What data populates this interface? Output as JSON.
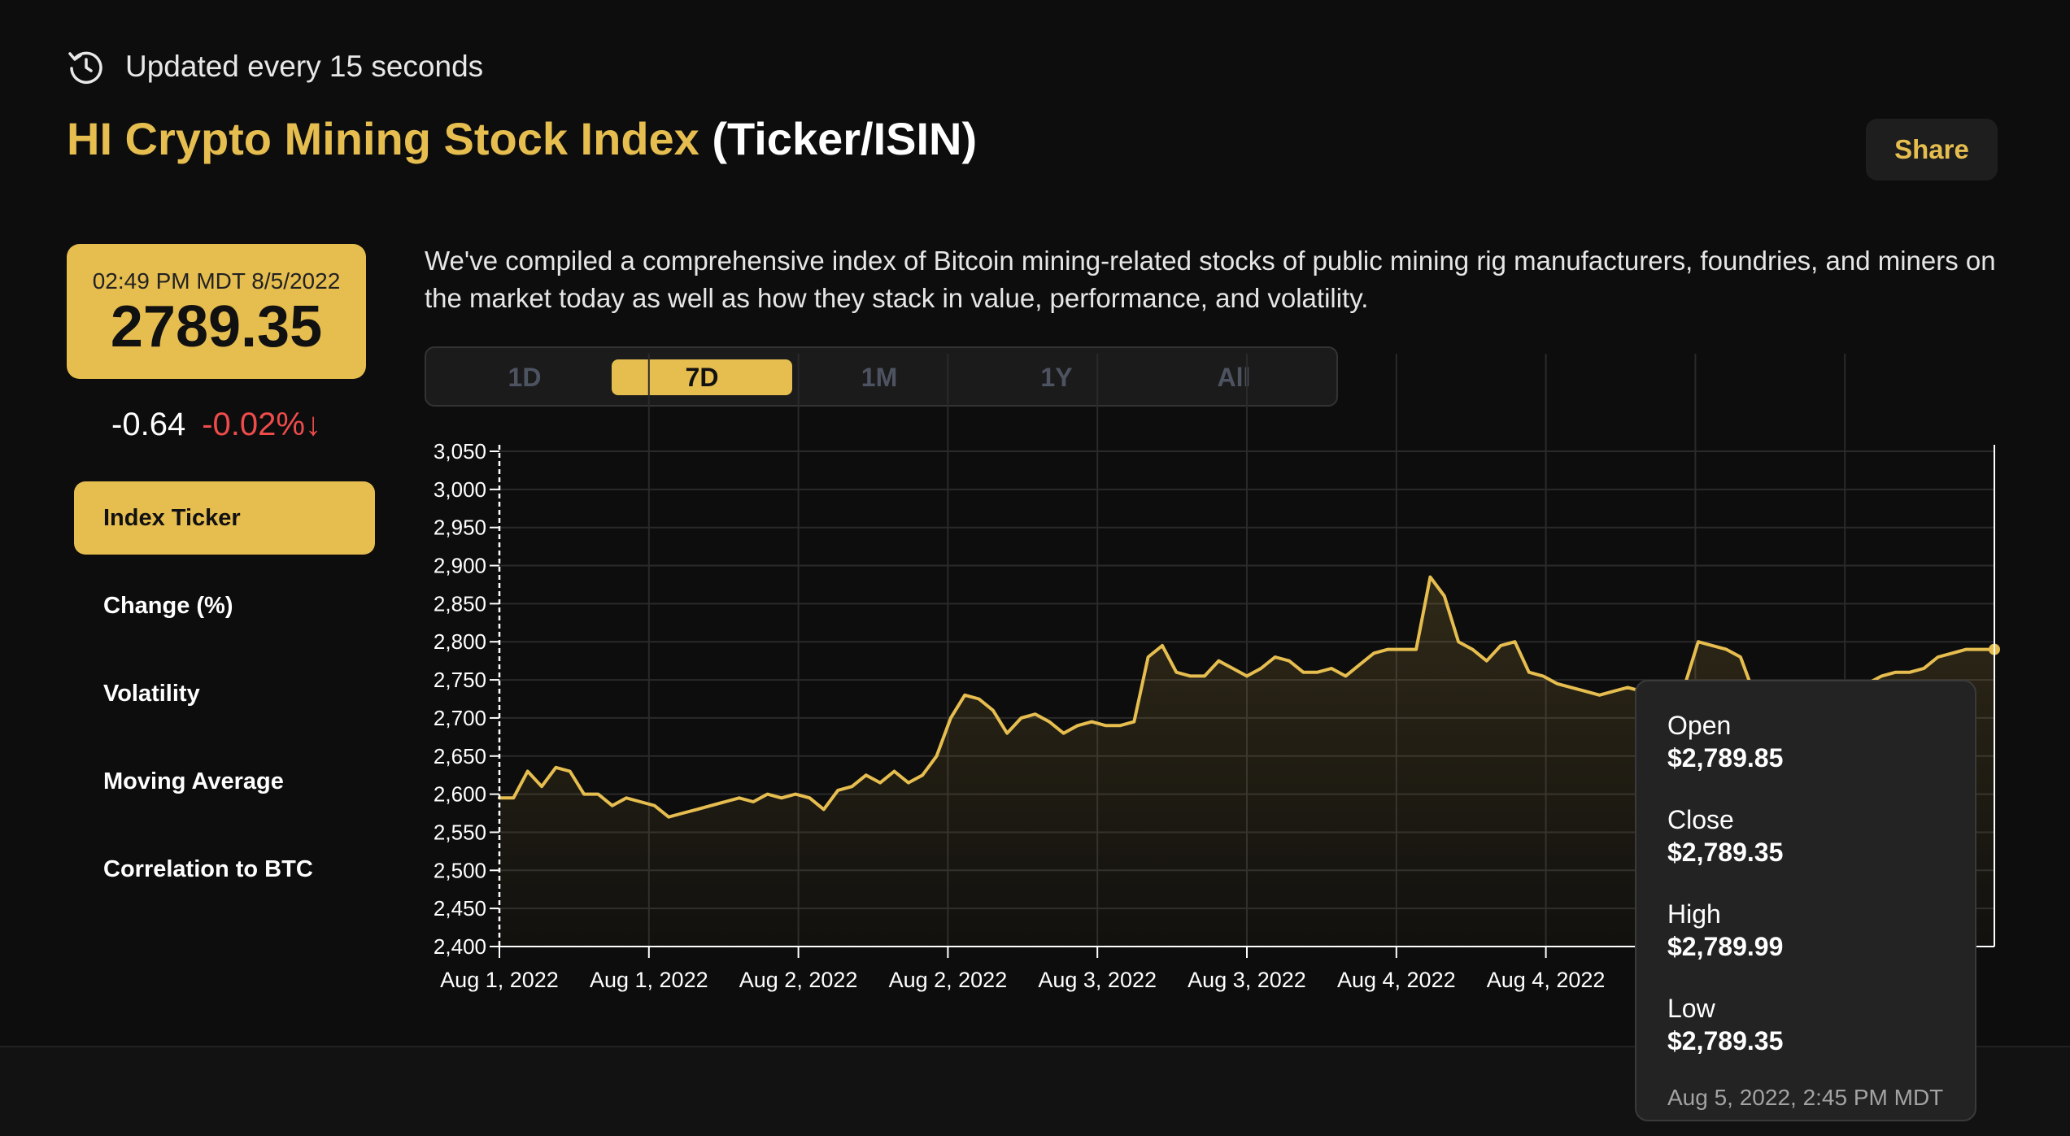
{
  "header": {
    "updated_text": "Updated every 15 seconds",
    "title_accent": "HI Crypto Mining Stock Index",
    "title_rest": "(Ticker/ISIN)",
    "share_label": "Share"
  },
  "price_card": {
    "timestamp": "02:49 PM MDT 8/5/2022",
    "price": "2789.35"
  },
  "change": {
    "absolute": "-0.64",
    "percent": "-0.02%↓"
  },
  "nav": {
    "items": [
      {
        "label": "Index Ticker",
        "active": true
      },
      {
        "label": "Change (%)",
        "active": false
      },
      {
        "label": "Volatility",
        "active": false
      },
      {
        "label": "Moving Average",
        "active": false
      },
      {
        "label": "Correlation to BTC",
        "active": false
      }
    ]
  },
  "description": "We've compiled a comprehensive index of Bitcoin mining-related stocks of public mining rig manufacturers, foundries, and miners on the market today as well as how they stack in value, performance, and volatility.",
  "range_tabs": [
    {
      "label": "1D",
      "active": false
    },
    {
      "label": "7D",
      "active": true
    },
    {
      "label": "1M",
      "active": false
    },
    {
      "label": "1Y",
      "active": false
    },
    {
      "label": "All",
      "active": false
    }
  ],
  "tooltip": {
    "open_label": "Open",
    "open_value": "$2,789.85",
    "close_label": "Close",
    "close_value": "$2,789.35",
    "high_label": "High",
    "high_value": "$2,789.99",
    "low_label": "Low",
    "low_value": "$2,789.35",
    "time": "Aug 5, 2022, 2:45 PM MDT"
  },
  "colors": {
    "accent": "#e6bd4f",
    "negative": "#ef4b4b",
    "background": "#0d0d0d"
  },
  "icons": {
    "updated": "clock-refresh-icon"
  },
  "chart_data": {
    "type": "area",
    "title": "",
    "xlabel": "",
    "ylabel": "",
    "ylim": [
      2400,
      3050
    ],
    "y_ticks": [
      2400,
      2450,
      2500,
      2550,
      2600,
      2650,
      2700,
      2750,
      2800,
      2850,
      2900,
      2950,
      3000,
      3050
    ],
    "x_ticks": [
      "Aug 1, 2022",
      "Aug 1, 2022",
      "Aug 2, 2022",
      "Aug 2, 2022",
      "Aug 3, 2022",
      "Aug 3, 2022",
      "Aug 4, 2022",
      "Aug 4, 2022",
      "Aug 5, 2022",
      "Aug 5, 2022"
    ],
    "grid": true,
    "series": [
      {
        "values": [
          2595,
          2595,
          2630,
          2610,
          2635,
          2630,
          2600,
          2600,
          2585,
          2595,
          2590,
          2585,
          2570,
          2575,
          2580,
          2585,
          2590,
          2595,
          2590,
          2600,
          2595,
          2600,
          2595,
          2580,
          2605,
          2610,
          2625,
          2615,
          2630,
          2615,
          2625,
          2650,
          2700,
          2730,
          2725,
          2710,
          2680,
          2700,
          2705,
          2695,
          2680,
          2690,
          2695,
          2690,
          2690,
          2695,
          2780,
          2795,
          2760,
          2755,
          2755,
          2775,
          2765,
          2755,
          2765,
          2780,
          2775,
          2760,
          2760,
          2765,
          2755,
          2770,
          2785,
          2790,
          2790,
          2790,
          2885,
          2860,
          2800,
          2790,
          2775,
          2795,
          2800,
          2760,
          2755,
          2745,
          2740,
          2735,
          2730,
          2735,
          2740,
          2735,
          2740,
          2735,
          2740,
          2800,
          2795,
          2790,
          2780,
          2730,
          2725,
          2730,
          2735,
          2740,
          2730,
          2740,
          2735,
          2745,
          2755,
          2760,
          2760,
          2765,
          2780,
          2785,
          2790,
          2790,
          2790
        ]
      }
    ]
  }
}
